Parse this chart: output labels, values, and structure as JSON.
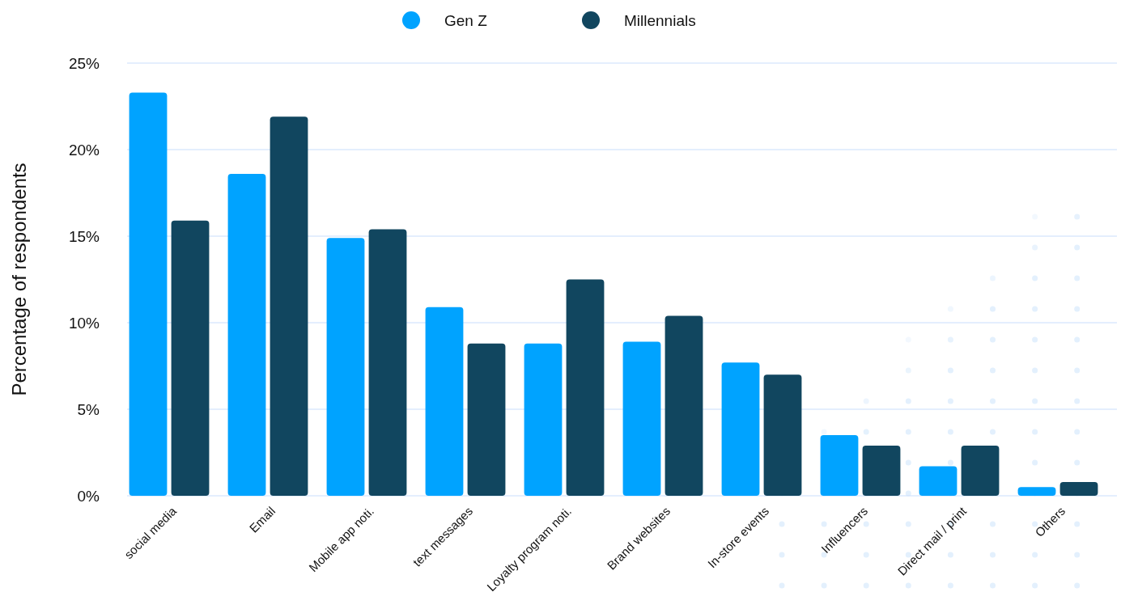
{
  "chart_data": {
    "type": "bar",
    "ylabel": "Percentage of respondents",
    "categories": [
      "social media",
      "Email",
      "Mobile app noti.",
      "text messages",
      "Loyalty program noti.",
      "Brand websites",
      "In-store events",
      "Influencers",
      "Direct mail / print",
      "Others"
    ],
    "series": [
      {
        "name": "Gen Z",
        "color": "#00a3ff",
        "values": [
          23.3,
          18.6,
          14.9,
          10.9,
          8.8,
          8.9,
          7.7,
          3.5,
          1.7,
          0.5
        ]
      },
      {
        "name": "Millennials",
        "color": "#11465f",
        "values": [
          15.9,
          21.9,
          15.4,
          8.8,
          12.5,
          10.4,
          7.0,
          2.9,
          2.9,
          0.8
        ]
      }
    ],
    "ylim": [
      0,
      25
    ],
    "yticks": [
      {
        "value": 0,
        "label": "0%"
      },
      {
        "value": 5,
        "label": "5%"
      },
      {
        "value": 10,
        "label": "10%"
      },
      {
        "value": 15,
        "label": "15%"
      },
      {
        "value": 20,
        "label": "20%"
      },
      {
        "value": 25,
        "label": "25%"
      }
    ],
    "grid": "y",
    "legend": "top"
  }
}
